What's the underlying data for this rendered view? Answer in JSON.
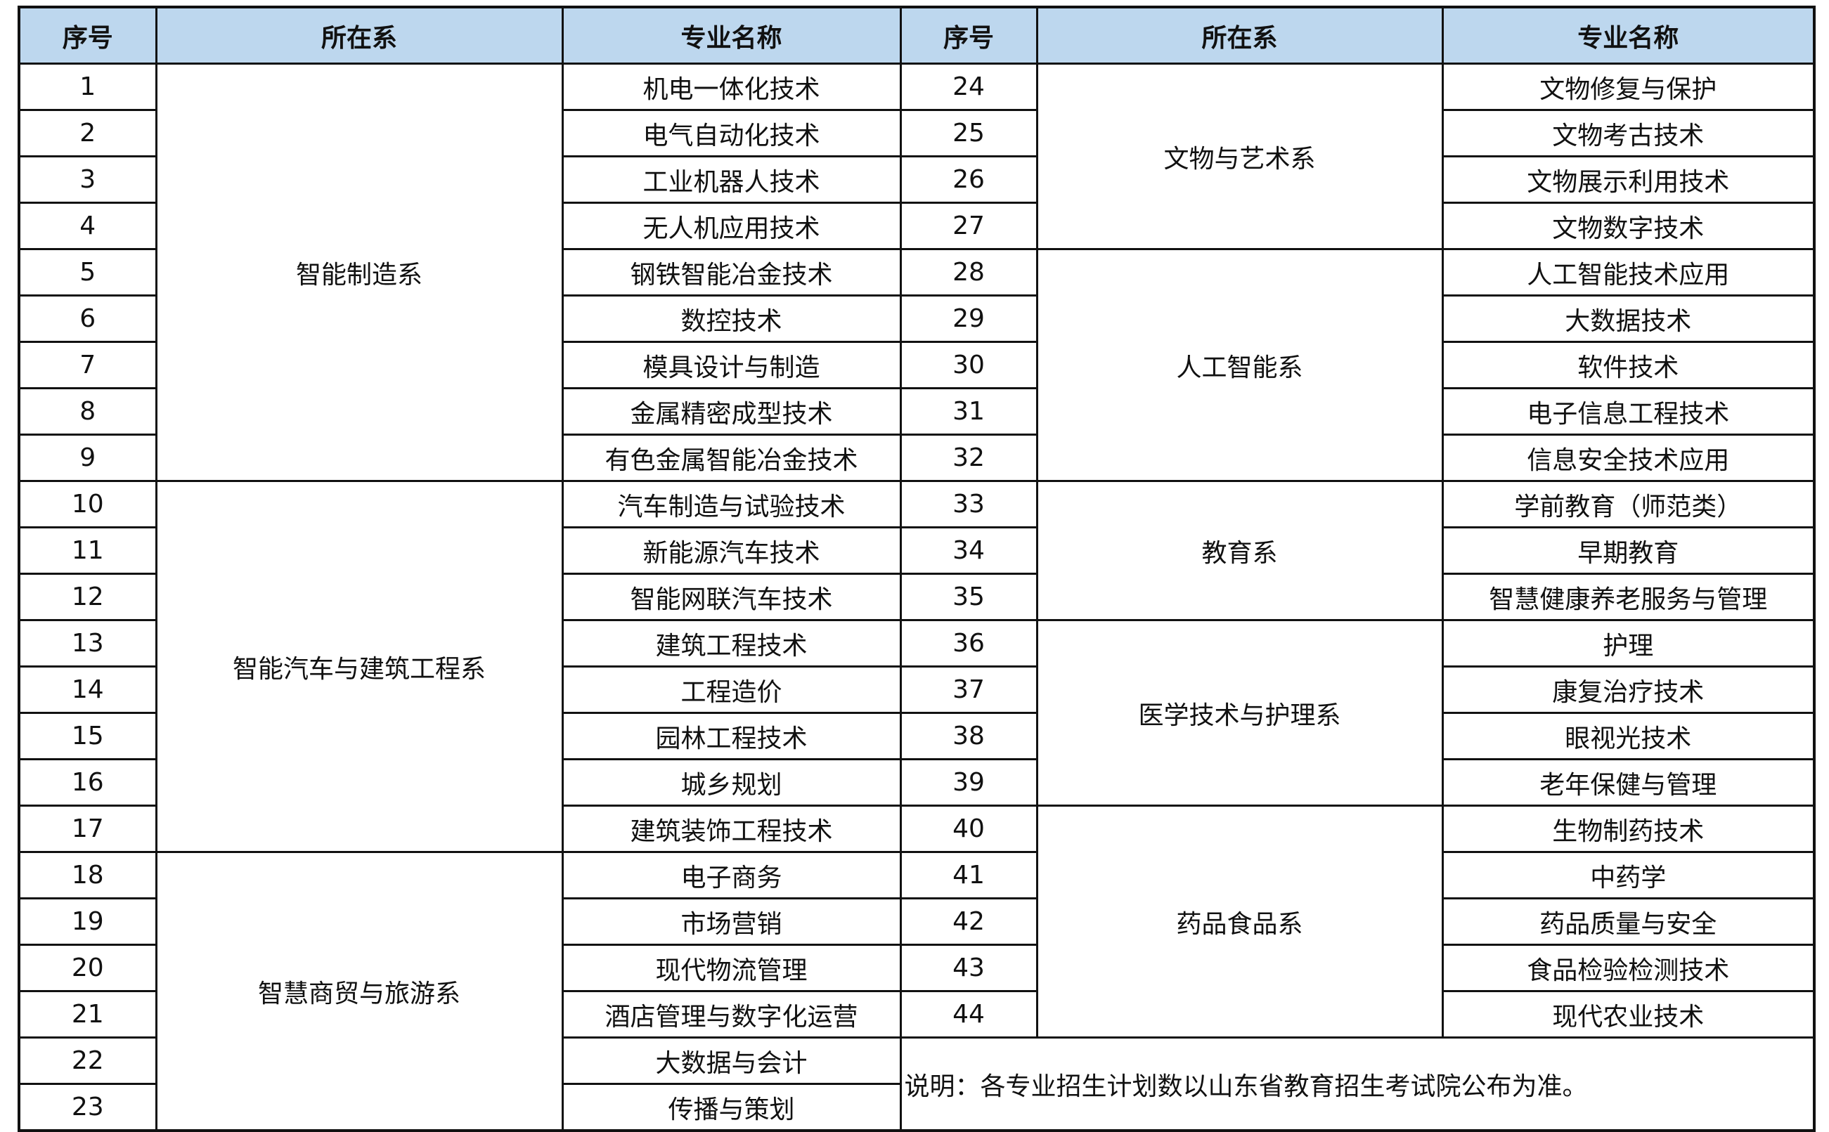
{
  "headers": [
    "序号",
    "所在系",
    "专业名称",
    "序号",
    "所在系",
    "专业名称"
  ],
  "colors": {
    "header_bg": "#bdd7ee",
    "border": "#111111"
  },
  "left_groups": [
    {
      "department": "智能制造系",
      "majors": [
        {
          "no": "1",
          "name": "机电一体化技术"
        },
        {
          "no": "2",
          "name": "电气自动化技术"
        },
        {
          "no": "3",
          "name": "工业机器人技术"
        },
        {
          "no": "4",
          "name": "无人机应用技术"
        },
        {
          "no": "5",
          "name": "钢铁智能冶金技术"
        },
        {
          "no": "6",
          "name": "数控技术"
        },
        {
          "no": "7",
          "name": "模具设计与制造"
        },
        {
          "no": "8",
          "name": "金属精密成型技术"
        },
        {
          "no": "9",
          "name": "有色金属智能冶金技术"
        }
      ]
    },
    {
      "department": "智能汽车与建筑工程系",
      "majors": [
        {
          "no": "10",
          "name": "汽车制造与试验技术"
        },
        {
          "no": "11",
          "name": "新能源汽车技术"
        },
        {
          "no": "12",
          "name": "智能网联汽车技术"
        },
        {
          "no": "13",
          "name": "建筑工程技术"
        },
        {
          "no": "14",
          "name": "工程造价"
        },
        {
          "no": "15",
          "name": "园林工程技术"
        },
        {
          "no": "16",
          "name": "城乡规划"
        },
        {
          "no": "17",
          "name": "建筑装饰工程技术"
        }
      ]
    },
    {
      "department": "智慧商贸与旅游系",
      "majors": [
        {
          "no": "18",
          "name": "电子商务"
        },
        {
          "no": "19",
          "name": "市场营销"
        },
        {
          "no": "20",
          "name": "现代物流管理"
        },
        {
          "no": "21",
          "name": "酒店管理与数字化运营"
        },
        {
          "no": "22",
          "name": "大数据与会计"
        },
        {
          "no": "23",
          "name": "传播与策划"
        }
      ]
    }
  ],
  "right_groups": [
    {
      "department": "文物与艺术系",
      "majors": [
        {
          "no": "24",
          "name": "文物修复与保护"
        },
        {
          "no": "25",
          "name": "文物考古技术"
        },
        {
          "no": "26",
          "name": "文物展示利用技术"
        },
        {
          "no": "27",
          "name": "文物数字技术"
        }
      ]
    },
    {
      "department": "人工智能系",
      "majors": [
        {
          "no": "28",
          "name": "人工智能技术应用"
        },
        {
          "no": "29",
          "name": "大数据技术"
        },
        {
          "no": "30",
          "name": "软件技术"
        },
        {
          "no": "31",
          "name": "电子信息工程技术"
        },
        {
          "no": "32",
          "name": "信息安全技术应用"
        }
      ]
    },
    {
      "department": "教育系",
      "majors": [
        {
          "no": "33",
          "name": "学前教育（师范类）"
        },
        {
          "no": "34",
          "name": "早期教育"
        },
        {
          "no": "35",
          "name": "智慧健康养老服务与管理"
        }
      ]
    },
    {
      "department": "医学技术与护理系",
      "majors": [
        {
          "no": "36",
          "name": "护理"
        },
        {
          "no": "37",
          "name": "康复治疗技术"
        },
        {
          "no": "38",
          "name": "眼视光技术"
        },
        {
          "no": "39",
          "name": "老年保健与管理"
        }
      ]
    },
    {
      "department": "药品食品系",
      "majors": [
        {
          "no": "40",
          "name": "生物制药技术"
        },
        {
          "no": "41",
          "name": "中药学"
        },
        {
          "no": "42",
          "name": "药品质量与安全"
        },
        {
          "no": "43",
          "name": "食品检验检测技术"
        },
        {
          "no": "44",
          "name": "现代农业技术"
        }
      ]
    }
  ],
  "note": "说明：各专业招生计划数以山东省教育招生考试院公布为准。"
}
